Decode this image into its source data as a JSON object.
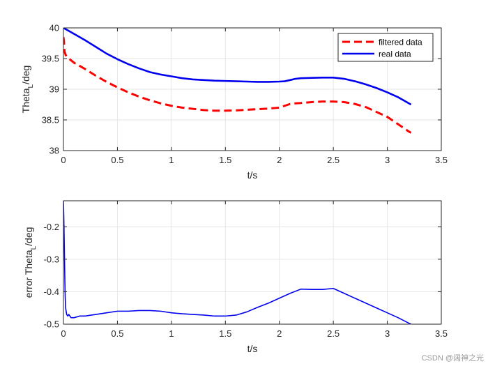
{
  "chart_data": [
    {
      "type": "line",
      "xlabel": "t/s",
      "ylabel_base": "Theta",
      "ylabel_sub": "L",
      "ylabel_tail": "/deg",
      "xlim": [
        0,
        3.5
      ],
      "ylim": [
        38,
        40
      ],
      "xticks": [
        0,
        0.5,
        1,
        1.5,
        2,
        2.5,
        3,
        3.5
      ],
      "yticks": [
        38,
        38.5,
        39,
        39.5,
        40
      ],
      "xtick_labels": [
        "0",
        "0.5",
        "1",
        "1.5",
        "2",
        "2.5",
        "3",
        "3.5"
      ],
      "ytick_labels": [
        "38",
        "38.5",
        "39",
        "39.5",
        "40"
      ],
      "grid": true,
      "legend_position": "top-right",
      "series": [
        {
          "name": "filtered data",
          "color": "#ff0000",
          "style": "dashed",
          "x": [
            0,
            0.005,
            0.01,
            0.02,
            0.05,
            0.1,
            0.2,
            0.3,
            0.4,
            0.5,
            0.6,
            0.7,
            0.8,
            0.9,
            1.0,
            1.1,
            1.2,
            1.3,
            1.4,
            1.5,
            1.6,
            1.7,
            1.8,
            1.9,
            2.0,
            2.05,
            2.1,
            2.15,
            2.2,
            2.3,
            2.4,
            2.5,
            2.6,
            2.7,
            2.8,
            2.9,
            3.0,
            3.1,
            3.2,
            3.22
          ],
          "y": [
            39.85,
            39.78,
            39.62,
            39.56,
            39.5,
            39.43,
            39.33,
            39.22,
            39.12,
            39.03,
            38.95,
            38.88,
            38.82,
            38.77,
            38.73,
            38.7,
            38.68,
            38.66,
            38.65,
            38.65,
            38.655,
            38.665,
            38.675,
            38.685,
            38.7,
            38.73,
            38.76,
            38.77,
            38.775,
            38.79,
            38.8,
            38.8,
            38.79,
            38.76,
            38.71,
            38.63,
            38.55,
            38.43,
            38.31,
            38.29
          ]
        },
        {
          "name": "real data",
          "color": "#0000ee",
          "style": "solid",
          "x": [
            0,
            0.1,
            0.2,
            0.3,
            0.4,
            0.5,
            0.6,
            0.7,
            0.8,
            0.9,
            1.0,
            1.1,
            1.2,
            1.3,
            1.4,
            1.5,
            1.6,
            1.7,
            1.8,
            1.9,
            2.0,
            2.05,
            2.1,
            2.15,
            2.2,
            2.3,
            2.4,
            2.5,
            2.6,
            2.7,
            2.8,
            2.9,
            3.0,
            3.1,
            3.2,
            3.22
          ],
          "y": [
            40.0,
            39.9,
            39.8,
            39.69,
            39.58,
            39.49,
            39.41,
            39.34,
            39.28,
            39.24,
            39.21,
            39.18,
            39.16,
            39.15,
            39.14,
            39.135,
            39.13,
            39.125,
            39.12,
            39.12,
            39.125,
            39.13,
            39.15,
            39.17,
            39.18,
            39.185,
            39.19,
            39.19,
            39.17,
            39.13,
            39.08,
            39.02,
            38.95,
            38.87,
            38.77,
            38.75
          ]
        }
      ]
    },
    {
      "type": "line",
      "xlabel": "t/s",
      "ylabel_base": "error Theta",
      "ylabel_sub": "L",
      "ylabel_tail": "/deg",
      "xlim": [
        0,
        3.5
      ],
      "ylim": [
        -0.5,
        -0.12
      ],
      "xticks": [
        0,
        0.5,
        1,
        1.5,
        2,
        2.5,
        3,
        3.5
      ],
      "yticks": [
        -0.5,
        -0.4,
        -0.3,
        -0.2
      ],
      "xtick_labels": [
        "0",
        "0.5",
        "1",
        "1.5",
        "2",
        "2.5",
        "3",
        "3.5"
      ],
      "ytick_labels": [
        "-0.5",
        "-0.4",
        "-0.3",
        "-0.2"
      ],
      "grid": true,
      "series": [
        {
          "name": "error",
          "color": "#0000ee",
          "style": "solid",
          "x": [
            0,
            0.005,
            0.01,
            0.015,
            0.02,
            0.03,
            0.04,
            0.05,
            0.07,
            0.1,
            0.15,
            0.2,
            0.3,
            0.4,
            0.5,
            0.6,
            0.7,
            0.8,
            0.9,
            1.0,
            1.1,
            1.2,
            1.3,
            1.4,
            1.5,
            1.6,
            1.7,
            1.8,
            1.9,
            2.0,
            2.1,
            2.2,
            2.3,
            2.4,
            2.5,
            2.6,
            2.7,
            2.8,
            2.9,
            3.0,
            3.1,
            3.2,
            3.22
          ],
          "y": [
            -0.12,
            -0.2,
            -0.3,
            -0.4,
            -0.45,
            -0.47,
            -0.475,
            -0.47,
            -0.48,
            -0.48,
            -0.475,
            -0.475,
            -0.47,
            -0.465,
            -0.46,
            -0.46,
            -0.458,
            -0.458,
            -0.46,
            -0.465,
            -0.468,
            -0.47,
            -0.472,
            -0.475,
            -0.475,
            -0.472,
            -0.462,
            -0.448,
            -0.435,
            -0.42,
            -0.405,
            -0.392,
            -0.393,
            -0.393,
            -0.39,
            -0.405,
            -0.42,
            -0.435,
            -0.45,
            -0.465,
            -0.48,
            -0.497,
            -0.5
          ]
        }
      ]
    }
  ],
  "watermark": "CSDN @阔神之光"
}
